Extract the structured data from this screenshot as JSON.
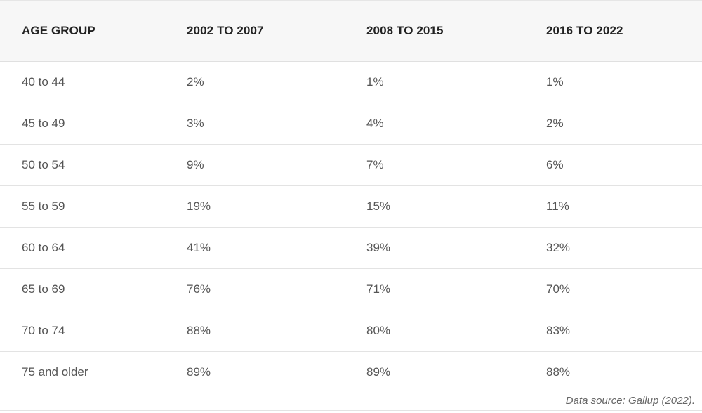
{
  "table": {
    "headers": [
      "AGE GROUP",
      "2002 TO 2007",
      "2008 TO 2015",
      "2016 TO 2022"
    ],
    "rows": [
      [
        "40 to 44",
        "2%",
        "1%",
        "1%"
      ],
      [
        "45 to 49",
        "3%",
        "4%",
        "2%"
      ],
      [
        "50 to 54",
        "9%",
        "7%",
        "6%"
      ],
      [
        "55 to 59",
        "19%",
        "15%",
        "11%"
      ],
      [
        "60 to 64",
        "41%",
        "39%",
        "32%"
      ],
      [
        "65 to 69",
        "76%",
        "71%",
        "70%"
      ],
      [
        "70 to 74",
        "88%",
        "80%",
        "83%"
      ],
      [
        "75 and older",
        "89%",
        "89%",
        "88%"
      ]
    ]
  },
  "source": "Data source: Gallup (2022)."
}
